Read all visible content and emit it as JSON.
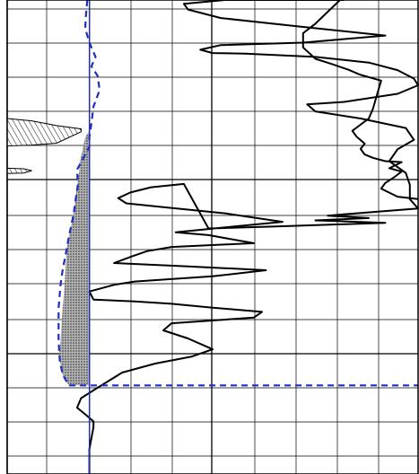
{
  "chart_data": {
    "type": "line",
    "title": "",
    "xlabel": "",
    "ylabel": "",
    "grid": true,
    "legend": "none",
    "xlim": [
      0,
      100
    ],
    "ylim": [
      0,
      100
    ],
    "colors": {
      "grid": "#000000",
      "curve": "#000000",
      "dashed": "#1f2fbf",
      "baseline": "#1f2fbf",
      "hatch_fill": "#8a8a8a",
      "background": "#ffffff"
    },
    "series": [
      {
        "style": "solid",
        "x": [
          82,
          65,
          53,
          43,
          44,
          52,
          70,
          92,
          72,
          52,
          47,
          50,
          58,
          75,
          88,
          95,
          99,
          100,
          95,
          82,
          73,
          75,
          86,
          97,
          99,
          95,
          93,
          97,
          98,
          98,
          100,
          85,
          78,
          88,
          75,
          92,
          68,
          49,
          43,
          35,
          30,
          27,
          29,
          38,
          53,
          67,
          55,
          41,
          49,
          60,
          40,
          34,
          30,
          26,
          44,
          63,
          50,
          31,
          26,
          20,
          21,
          31,
          40,
          50,
          62,
          60,
          40,
          38,
          44,
          50,
          45,
          36,
          28,
          22,
          18,
          17,
          19,
          21,
          21,
          20,
          20
        ],
        "y": [
          100,
          100,
          100,
          99.2,
          98,
          96.2,
          94.5,
          92.5,
          91,
          90.5,
          89.5,
          88.8,
          88.7,
          88,
          86.8,
          85.2,
          83.4,
          82,
          80.2,
          78.5,
          78,
          76.5,
          75,
          73,
          70.5,
          68.5,
          66,
          63.5,
          61,
          58,
          56,
          55,
          54.5,
          54,
          53.5,
          53,
          52.3,
          51.8,
          61.2,
          60.5,
          59.4,
          58.2,
          57.1,
          56.3,
          55,
          53.2,
          52.2,
          51,
          50.4,
          48.7,
          47.9,
          47,
          45.8,
          44.5,
          43.8,
          43,
          41.7,
          40.6,
          39.9,
          38.5,
          36.8,
          36.4,
          35.9,
          35.1,
          34.2,
          33,
          31.8,
          30.3,
          28.6,
          26.3,
          24.8,
          23.3,
          21.4,
          18.2,
          16,
          14,
          12.6,
          11.1,
          9.9,
          5.2,
          0
        ]
      },
      {
        "style": "solid",
        "x": [
          81,
          75,
          72,
          72,
          75,
          79,
          83,
          86,
          91,
          89,
          88,
          84,
          85,
          87,
          86,
          87,
          89,
          92,
          96,
          93,
          96,
          94,
          92,
          91,
          95,
          100
        ],
        "y": [
          100,
          95,
          93,
          90,
          87.6,
          86.5,
          85.3,
          84.2,
          83,
          77,
          75,
          72.4,
          71.2,
          69.7,
          68.6,
          67.4,
          66.7,
          66,
          65.8,
          64.5,
          63.8,
          62.5,
          61.4,
          60.2,
          58.5,
          58
        ]
      },
      {
        "style": "dashed",
        "x": [
          19.5,
          19.2,
          19.0,
          20.0,
          21.5,
          20.5,
          22.0,
          22.5,
          21.0,
          20.5,
          20.0,
          20.0,
          17.0,
          17.2,
          16.6,
          16.2,
          15.5,
          15.0,
          14.5,
          13.5,
          13.0,
          12.5,
          12.5,
          12.8,
          13.5,
          15.0,
          20.0,
          50.0,
          86.5,
          100.0
        ],
        "y": [
          100.0,
          97.0,
          94.0,
          91.0,
          88.0,
          86.0,
          84.0,
          81.0,
          77.5,
          74.0,
          71.0,
          69.0,
          64.2,
          61.0,
          57.5,
          55.0,
          52.0,
          50.0,
          47.5,
          43.0,
          40.0,
          35.0,
          28.0,
          24.0,
          21.0,
          18.7,
          18.7,
          18.7,
          18.7,
          18.7
        ]
      },
      {
        "style": "solid",
        "x": [
          20,
          20
        ],
        "y": [
          100,
          0
        ]
      }
    ],
    "filled_regions": [
      {
        "fill": "dotted",
        "x": [
          12.5,
          13,
          13.5,
          14,
          14.5,
          15,
          15.5,
          16.2,
          17,
          17.6,
          17.6,
          18,
          18.5,
          19,
          20,
          20,
          15,
          13.5,
          12.8,
          12.5
        ],
        "y": [
          24,
          28,
          35,
          40,
          47.5,
          50,
          52,
          55,
          61,
          64.2,
          65.6,
          67,
          69,
          71,
          72.5,
          18.7,
          18.7,
          21,
          24,
          24
        ]
      },
      {
        "fill": "hatched",
        "x": [
          0,
          6,
          12,
          18,
          18,
          12,
          6,
          0
        ],
        "y": [
          75,
          74.5,
          73.5,
          72.8,
          72.2,
          69.8,
          69.4,
          69.2
        ]
      },
      {
        "fill": "hatched",
        "x": [
          0,
          4,
          6,
          4,
          0
        ],
        "y": [
          64.5,
          64.4,
          64,
          63.5,
          63.4
        ]
      }
    ]
  }
}
